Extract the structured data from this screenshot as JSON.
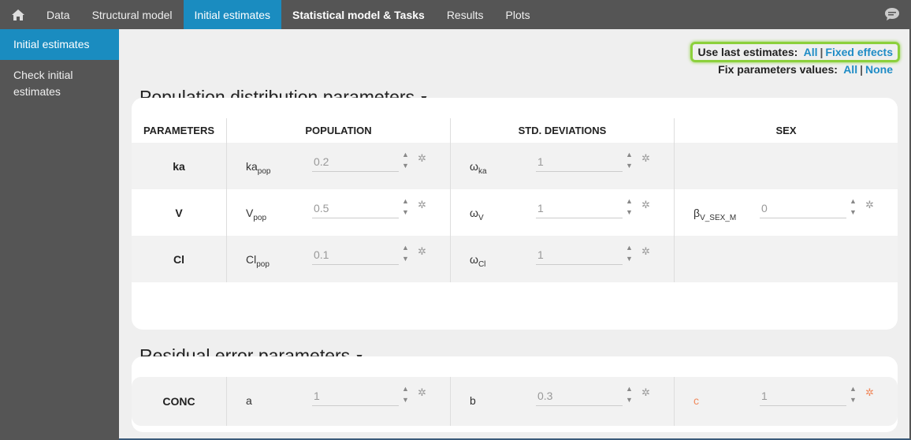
{
  "nav": {
    "tabs": [
      {
        "label": "Data"
      },
      {
        "label": "Structural model"
      },
      {
        "label": "Initial estimates"
      },
      {
        "label": "Statistical model & Tasks"
      },
      {
        "label": "Results"
      },
      {
        "label": "Plots"
      }
    ]
  },
  "sidebar": {
    "items": [
      {
        "label": "Initial estimates"
      },
      {
        "label": "Check initial estimates"
      }
    ]
  },
  "controls": {
    "use_last_label": "Use last estimates:",
    "use_last_all": "All",
    "use_last_fixed": "Fixed effects",
    "fix_label": "Fix parameters values:",
    "fix_all": "All",
    "fix_none": "None",
    "separator": "|"
  },
  "population": {
    "title": "Population distribution parameters",
    "headers": [
      "PARAMETERS",
      "POPULATION",
      "STD. DEVIATIONS",
      "SEX"
    ],
    "rows": [
      {
        "name": "ka",
        "pop": {
          "base": "ka",
          "sub": "pop",
          "value": "0.2"
        },
        "sd": {
          "base": "ω",
          "sub": "ka",
          "value": "1"
        }
      },
      {
        "name": "V",
        "pop": {
          "base": "V",
          "sub": "pop",
          "value": "0.5"
        },
        "sd": {
          "base": "ω",
          "sub": "V",
          "value": "1"
        },
        "cov": {
          "base": "β",
          "sub": "V_SEX_M",
          "value": "0"
        }
      },
      {
        "name": "Cl",
        "pop": {
          "base": "Cl",
          "sub": "pop",
          "value": "0.1"
        },
        "sd": {
          "base": "ω",
          "sub": "Cl",
          "value": "1"
        }
      }
    ]
  },
  "residual": {
    "title": "Residual error parameters",
    "rows": [
      {
        "name": "CONC",
        "params": [
          {
            "label": "a",
            "value": "1"
          },
          {
            "label": "b",
            "value": "0.3"
          },
          {
            "label": "c",
            "value": "1"
          }
        ]
      }
    ]
  },
  "colors": {
    "accent": "#1a8cc0",
    "highlight": "#8cd03c",
    "link": "#1f8cc6",
    "warning": "#f08a5d"
  }
}
